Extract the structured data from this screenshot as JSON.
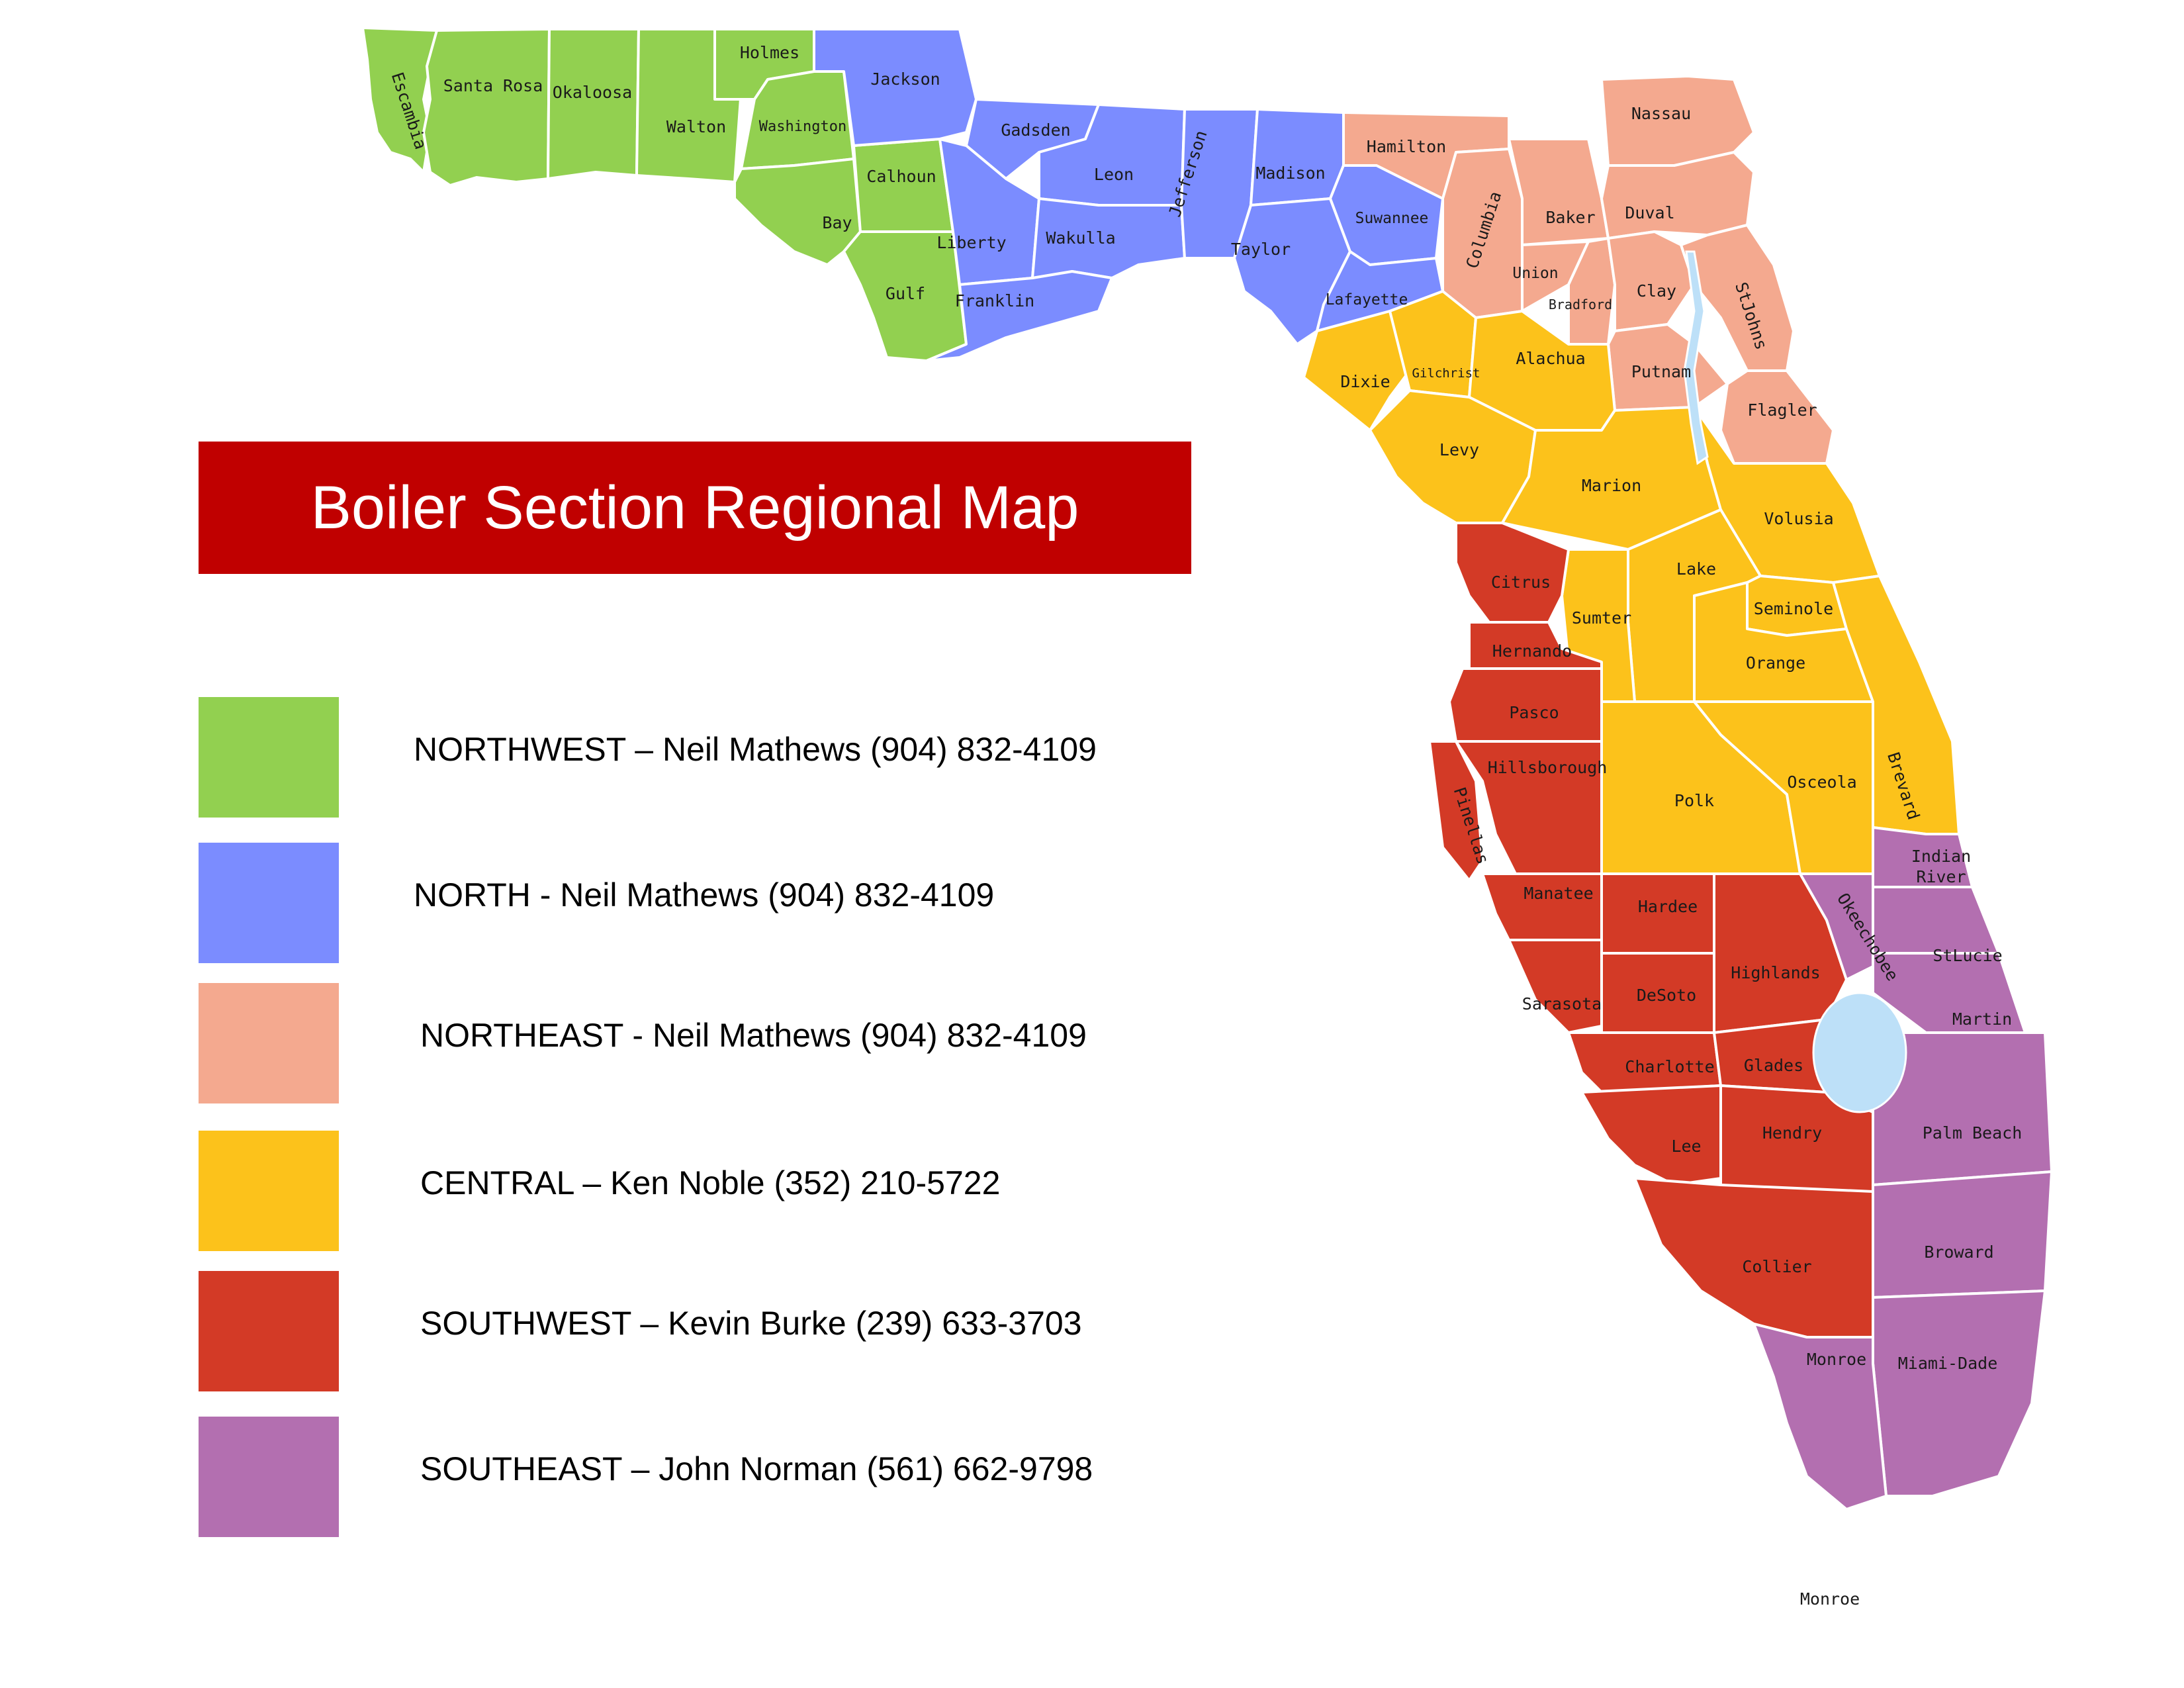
{
  "title": "Boiler Section Regional Map",
  "regions": [
    {
      "key": "northwest",
      "label": "NORTHWEST – Neil Mathews (904) 832-4109",
      "color": "#92d050"
    },
    {
      "key": "north",
      "label": "NORTH - Neil Mathews (904) 832-4109",
      "color": "#7b8cff"
    },
    {
      "key": "northeast",
      "label": "NORTHEAST - Neil Mathews (904) 832-4109",
      "color": "#f4a98f"
    },
    {
      "key": "central",
      "label": "CENTRAL – Ken Noble (352) 210-5722",
      "color": "#fcc21b"
    },
    {
      "key": "southwest",
      "label": "SOUTHWEST – Kevin Burke (239) 633-3703",
      "color": "#d33a26"
    },
    {
      "key": "southeast",
      "label": "SOUTHEAST – John Norman (561) 662-9798",
      "color": "#b36fb0"
    }
  ],
  "lake_color": "#bde0f8",
  "counties": {
    "escambia": "Escambia",
    "santa_rosa": "Santa Rosa",
    "okaloosa": "Okaloosa",
    "walton": "Walton",
    "holmes": "Holmes",
    "washington": "Washington",
    "bay": "Bay",
    "calhoun": "Calhoun",
    "gulf": "Gulf",
    "jackson": "Jackson",
    "gadsden": "Gadsden",
    "leon": "Leon",
    "liberty": "Liberty",
    "wakulla": "Wakulla",
    "franklin": "Franklin",
    "jefferson": "Jefferson",
    "madison": "Madison",
    "taylor": "Taylor",
    "suwannee": "Suwannee",
    "lafayette": "Lafayette",
    "hamilton": "Hamilton",
    "columbia": "Columbia",
    "baker": "Baker",
    "union": "Union",
    "bradford": "Bradford",
    "nassau": "Nassau",
    "duval": "Duval",
    "clay": "Clay",
    "st_johns": "StJohns",
    "putnam": "Putnam",
    "flagler": "Flagler",
    "dixie": "Dixie",
    "gilchrist": "Gilchrist",
    "alachua": "Alachua",
    "levy": "Levy",
    "marion": "Marion",
    "volusia": "Volusia",
    "lake": "Lake",
    "sumter": "Sumter",
    "seminole": "Seminole",
    "orange": "Orange",
    "polk": "Polk",
    "osceola": "Osceola",
    "brevard": "Brevard",
    "citrus": "Citrus",
    "hernando": "Hernando",
    "pasco": "Pasco",
    "hillsborough": "Hillsborough",
    "pinellas": "Pinellas",
    "manatee": "Manatee",
    "hardee": "Hardee",
    "sarasota": "Sarasota",
    "desoto": "DeSoto",
    "highlands": "Highlands",
    "charlotte": "Charlotte",
    "glades": "Glades",
    "lee": "Lee",
    "hendry": "Hendry",
    "collier": "Collier",
    "indian_river": "Indian River",
    "okeechobee": "Okeechobee",
    "st_lucie": "StLucie",
    "martin": "Martin",
    "palm_beach": "Palm Beach",
    "broward": "Broward",
    "miami_dade": "Miami-Dade",
    "monroe": "Monroe",
    "monroe_keys": "Monroe"
  }
}
